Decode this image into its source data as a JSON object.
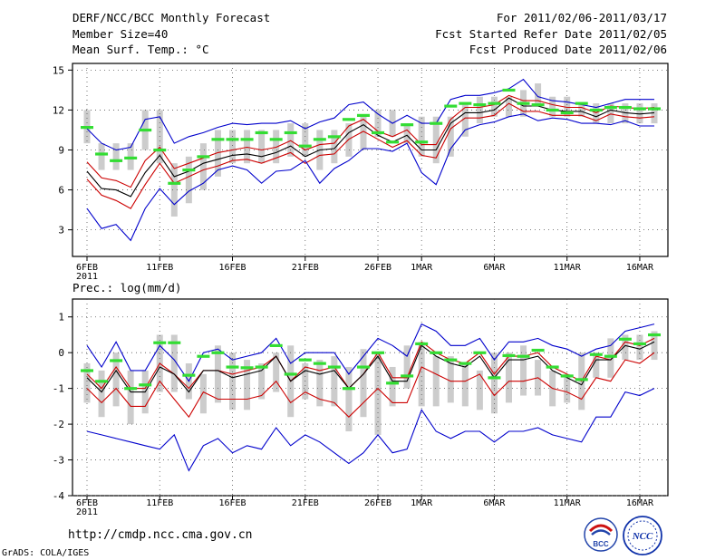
{
  "header": {
    "left": [
      "DERF/NCC/BCC Monthly Forecast",
      "Member Size=40",
      "Mean Surf. Temp.: °C"
    ],
    "right": [
      "For 2011/02/06-2011/03/17",
      "Fcst Started Refer Date 2011/02/05",
      "Fcst Produced Date 2011/02/06"
    ]
  },
  "footer": {
    "url": "http://cmdp.ncc.cma.gov.cn",
    "credit": "GrADS: COLA/IGES"
  },
  "logos": {
    "bcc": "BCC",
    "ncc": "NCC"
  },
  "colors": {
    "envelope": "#0000cc",
    "spread": "#cc0000",
    "mean": "#000000",
    "box": "#cccccc",
    "median": "#33dd33"
  },
  "chart_data": [
    {
      "type": "ensemble-boxplot",
      "title": "Mean Surf. Temp.: °C",
      "xlabel": "",
      "ylabel": "°C",
      "ylim": [
        1,
        15.5
      ],
      "yticks": [
        3,
        6,
        9,
        12,
        15
      ],
      "xticks": [
        {
          "day": 1,
          "label": "6FEB"
        },
        {
          "day": 6,
          "label": "11FEB"
        },
        {
          "day": 11,
          "label": "16FEB"
        },
        {
          "day": 16,
          "label": "21FEB"
        },
        {
          "day": 21,
          "label": "26FEB"
        },
        {
          "day": 24,
          "label": "1MAR"
        },
        {
          "day": 29,
          "label": "6MAR"
        },
        {
          "day": 34,
          "label": "11MAR"
        },
        {
          "day": 39,
          "label": "16MAR"
        }
      ],
      "year_label": "2011",
      "days": [
        1,
        2,
        3,
        4,
        5,
        6,
        7,
        8,
        9,
        10,
        11,
        12,
        13,
        14,
        15,
        16,
        17,
        18,
        19,
        20,
        21,
        22,
        23,
        24,
        25,
        26,
        27,
        28,
        29,
        30,
        31,
        32,
        33,
        34,
        35,
        36,
        37,
        38,
        39,
        40
      ],
      "box_low": [
        9.5,
        7.5,
        7.5,
        7.5,
        9,
        8,
        4,
        5,
        6,
        7,
        8,
        8,
        8,
        8,
        8.5,
        8.5,
        7.5,
        8,
        8.5,
        9,
        10,
        10,
        9.5,
        8.5,
        8,
        8.5,
        10,
        11,
        11.5,
        11.5,
        11.5,
        12.5,
        11.5,
        11.5,
        11.5,
        11,
        11,
        11,
        11,
        11
      ],
      "box_high": [
        12,
        9.5,
        9.5,
        9.5,
        12,
        12,
        8,
        8.5,
        9.5,
        10.5,
        10.5,
        10.5,
        10.5,
        10.5,
        11,
        11,
        10.5,
        10.5,
        11,
        11.5,
        12,
        12,
        11,
        11.5,
        11.5,
        11.5,
        12.5,
        13,
        13,
        13,
        13.5,
        14,
        13,
        13,
        12.5,
        12.5,
        12.5,
        12.5,
        12.5,
        12.5
      ],
      "median": [
        10.7,
        8.7,
        8.2,
        8.4,
        10.5,
        9.0,
        6.5,
        7.5,
        8.5,
        9.8,
        9.8,
        9.8,
        10.3,
        9.8,
        10.3,
        9.3,
        9.8,
        10.0,
        11.3,
        11.6,
        10.3,
        9.6,
        10.9,
        9.6,
        11.0,
        12.3,
        12.5,
        12.4,
        12.5,
        13.5,
        12.5,
        12.4,
        12.0,
        11.8,
        12.5,
        12.0,
        12.2,
        12.2,
        12.1,
        12.1
      ],
      "series": [
        {
          "name": "max",
          "color": "#0000cc",
          "values": [
            10.6,
            9.5,
            9.0,
            9.2,
            11.3,
            11.5,
            9.5,
            10.0,
            10.3,
            10.7,
            11.0,
            10.9,
            11.0,
            11.0,
            11.2,
            10.6,
            11.1,
            11.4,
            12.4,
            12.6,
            11.7,
            11.0,
            11.6,
            11.0,
            11.0,
            12.8,
            13.1,
            13.1,
            13.3,
            13.6,
            14.3,
            13.0,
            12.7,
            12.6,
            12.4,
            12.2,
            12.5,
            12.8,
            12.8,
            12.8
          ]
        },
        {
          "name": "mean+sd",
          "color": "#cc0000",
          "values": [
            8.1,
            6.9,
            6.7,
            6.2,
            8.2,
            9.2,
            7.6,
            8.0,
            8.4,
            8.8,
            9.0,
            9.2,
            9.0,
            9.2,
            9.7,
            9.0,
            9.4,
            9.5,
            10.8,
            11.3,
            10.4,
            10.0,
            10.5,
            9.4,
            9.4,
            11.3,
            12.2,
            12.2,
            12.4,
            13.1,
            12.7,
            12.7,
            12.4,
            12.2,
            12.2,
            11.8,
            12.3,
            12.2,
            12.1,
            12.2
          ]
        },
        {
          "name": "mean",
          "color": "#000000",
          "values": [
            7.4,
            6.1,
            6.0,
            5.5,
            7.3,
            8.6,
            7.0,
            7.4,
            8.0,
            8.3,
            8.6,
            8.7,
            8.5,
            8.8,
            9.3,
            8.5,
            9.0,
            9.1,
            10.3,
            10.9,
            10.1,
            9.6,
            10.1,
            9.0,
            9.0,
            11.0,
            11.8,
            11.8,
            12.0,
            12.9,
            12.3,
            12.3,
            12.0,
            11.9,
            11.9,
            11.5,
            12.0,
            11.8,
            11.7,
            11.8
          ]
        },
        {
          "name": "mean-sd",
          "color": "#cc0000",
          "values": [
            6.8,
            5.6,
            5.2,
            4.6,
            6.4,
            8.0,
            6.5,
            7.0,
            7.5,
            7.8,
            8.2,
            8.3,
            8.0,
            8.4,
            8.8,
            8.0,
            8.6,
            8.7,
            9.8,
            10.4,
            9.8,
            9.2,
            9.7,
            8.6,
            8.4,
            10.6,
            11.4,
            11.4,
            11.6,
            12.5,
            11.9,
            11.9,
            11.6,
            11.6,
            11.6,
            11.2,
            11.7,
            11.5,
            11.4,
            11.5
          ]
        },
        {
          "name": "min",
          "color": "#0000cc",
          "values": [
            4.6,
            3.1,
            3.4,
            2.2,
            4.6,
            6.1,
            4.9,
            5.9,
            6.5,
            7.5,
            7.8,
            7.5,
            6.5,
            7.4,
            7.5,
            8.2,
            6.5,
            7.6,
            8.2,
            9.1,
            9.1,
            8.9,
            9.5,
            7.3,
            6.4,
            9.1,
            10.5,
            10.9,
            11.1,
            11.5,
            11.7,
            11.2,
            11.4,
            11.3,
            11.0,
            11.0,
            10.9,
            11.2,
            10.8,
            10.8
          ]
        }
      ]
    },
    {
      "type": "ensemble-boxplot",
      "title": "Prec.: log(mm/d)",
      "xlabel": "",
      "ylabel": "log(mm/d)",
      "ylim": [
        -4,
        1.5
      ],
      "yticks": [
        -4,
        -3,
        -2,
        -1,
        0,
        1
      ],
      "xticks": [
        {
          "day": 1,
          "label": "6FEB"
        },
        {
          "day": 6,
          "label": "11FEB"
        },
        {
          "day": 11,
          "label": "16FEB"
        },
        {
          "day": 16,
          "label": "21FEB"
        },
        {
          "day": 21,
          "label": "26FEB"
        },
        {
          "day": 24,
          "label": "1MAR"
        },
        {
          "day": 29,
          "label": "6MAR"
        },
        {
          "day": 34,
          "label": "11MAR"
        },
        {
          "day": 39,
          "label": "16MAR"
        }
      ],
      "year_label": "2011",
      "days": [
        1,
        2,
        3,
        4,
        5,
        6,
        7,
        8,
        9,
        10,
        11,
        12,
        13,
        14,
        15,
        16,
        17,
        18,
        19,
        20,
        21,
        22,
        23,
        24,
        25,
        26,
        27,
        28,
        29,
        30,
        31,
        32,
        33,
        34,
        35,
        36,
        37,
        38,
        39,
        40
      ],
      "box_low": [
        -1.4,
        -1.8,
        -1.5,
        -2.0,
        -1.7,
        -1.1,
        -1.1,
        -1.3,
        -1.7,
        -1.4,
        -1.6,
        -1.6,
        -1.3,
        -1.1,
        -1.8,
        -1.3,
        -1.5,
        -1.5,
        -2.2,
        -1.8,
        -2.3,
        -1.5,
        -1.0,
        -1.5,
        -1.5,
        -1.4,
        -1.5,
        -1.6,
        -1.7,
        -1.4,
        -1.2,
        -1.2,
        -1.5,
        -1.4,
        -1.6,
        -0.7,
        -0.7,
        -0.2,
        -0.2,
        -0.2
      ],
      "box_high": [
        -0.3,
        -0.5,
        0.0,
        -0.5,
        -0.5,
        0.5,
        0.5,
        -0.3,
        -0.6,
        0.2,
        0.0,
        -0.2,
        -0.3,
        0.0,
        0.2,
        -0.3,
        -0.2,
        -0.1,
        -0.4,
        0.1,
        0.0,
        -0.4,
        0.2,
        0.3,
        -0.1,
        -0.1,
        -0.3,
        -0.5,
        0.0,
        0.0,
        0.2,
        -0.2,
        -0.5,
        -0.6,
        0.0,
        0.0,
        0.4,
        0.5,
        0.5,
        0.6
      ],
      "median": [
        -0.5,
        -0.8,
        -0.22,
        -1.0,
        -0.9,
        0.28,
        0.28,
        -0.63,
        -0.1,
        0.0,
        -0.4,
        -0.42,
        -0.4,
        0.2,
        -0.6,
        -0.2,
        -0.3,
        -0.4,
        -1.0,
        -0.4,
        0.0,
        -0.85,
        -0.65,
        0.25,
        0.0,
        -0.2,
        -0.3,
        0.0,
        -0.7,
        -0.08,
        -0.1,
        0.07,
        -0.4,
        -0.65,
        -0.75,
        -0.05,
        -0.1,
        0.38,
        0.25,
        0.5
      ],
      "series": [
        {
          "name": "max",
          "color": "#0000cc",
          "values": [
            0.2,
            -0.4,
            0.3,
            -0.5,
            -0.5,
            0.2,
            -0.2,
            -0.8,
            0.0,
            0.1,
            -0.2,
            -0.1,
            0.0,
            0.4,
            -0.3,
            0.0,
            0.0,
            0.0,
            -0.6,
            -0.1,
            0.4,
            0.2,
            -0.1,
            0.8,
            0.6,
            0.2,
            0.2,
            0.4,
            -0.2,
            0.3,
            0.3,
            0.4,
            0.2,
            0.1,
            -0.1,
            0.1,
            0.2,
            0.6,
            0.7,
            0.8
          ]
        },
        {
          "name": "mean+sd",
          "color": "#cc0000",
          "values": [
            -0.6,
            -1.0,
            -0.4,
            -1.0,
            -1.0,
            -0.3,
            -0.6,
            -1.0,
            -0.5,
            -0.5,
            -0.6,
            -0.5,
            -0.4,
            -0.1,
            -0.8,
            -0.4,
            -0.5,
            -0.4,
            -1.0,
            -0.6,
            0.0,
            -0.7,
            -0.7,
            0.3,
            0.0,
            -0.2,
            -0.3,
            0.0,
            -0.6,
            -0.1,
            -0.1,
            0.0,
            -0.4,
            -0.6,
            -0.8,
            -0.1,
            -0.2,
            0.3,
            0.2,
            0.4
          ]
        },
        {
          "name": "mean",
          "color": "#000000",
          "values": [
            -0.7,
            -1.1,
            -0.5,
            -1.1,
            -1.1,
            -0.4,
            -0.6,
            -1.1,
            -0.5,
            -0.5,
            -0.7,
            -0.6,
            -0.5,
            -0.1,
            -0.8,
            -0.5,
            -0.6,
            -0.5,
            -1.0,
            -0.6,
            -0.1,
            -0.8,
            -0.8,
            0.2,
            -0.1,
            -0.3,
            -0.4,
            -0.1,
            -0.7,
            -0.2,
            -0.2,
            -0.1,
            -0.5,
            -0.7,
            -0.9,
            -0.2,
            -0.2,
            0.2,
            0.1,
            0.3
          ]
        },
        {
          "name": "mean-sd",
          "color": "#cc0000",
          "values": [
            -1.0,
            -1.4,
            -1.0,
            -1.5,
            -1.5,
            -0.8,
            -1.3,
            -1.8,
            -1.1,
            -1.3,
            -1.3,
            -1.3,
            -1.2,
            -0.8,
            -1.4,
            -1.1,
            -1.3,
            -1.4,
            -1.8,
            -1.4,
            -1.0,
            -1.4,
            -1.4,
            -0.4,
            -0.6,
            -0.8,
            -0.8,
            -0.6,
            -1.2,
            -0.8,
            -0.8,
            -0.7,
            -1.0,
            -1.1,
            -1.3,
            -0.7,
            -0.8,
            -0.2,
            -0.3,
            0.0
          ]
        },
        {
          "name": "min",
          "color": "#0000cc",
          "values": [
            -2.2,
            -2.3,
            -2.4,
            -2.5,
            -2.6,
            -2.7,
            -2.3,
            -3.3,
            -2.6,
            -2.4,
            -2.8,
            -2.6,
            -2.7,
            -2.1,
            -2.6,
            -2.3,
            -2.5,
            -2.8,
            -3.1,
            -2.8,
            -2.3,
            -2.8,
            -2.7,
            -1.6,
            -2.2,
            -2.4,
            -2.2,
            -2.2,
            -2.5,
            -2.2,
            -2.2,
            -2.1,
            -2.3,
            -2.4,
            -2.5,
            -1.8,
            -1.8,
            -1.1,
            -1.2,
            -1.0
          ]
        }
      ]
    }
  ]
}
